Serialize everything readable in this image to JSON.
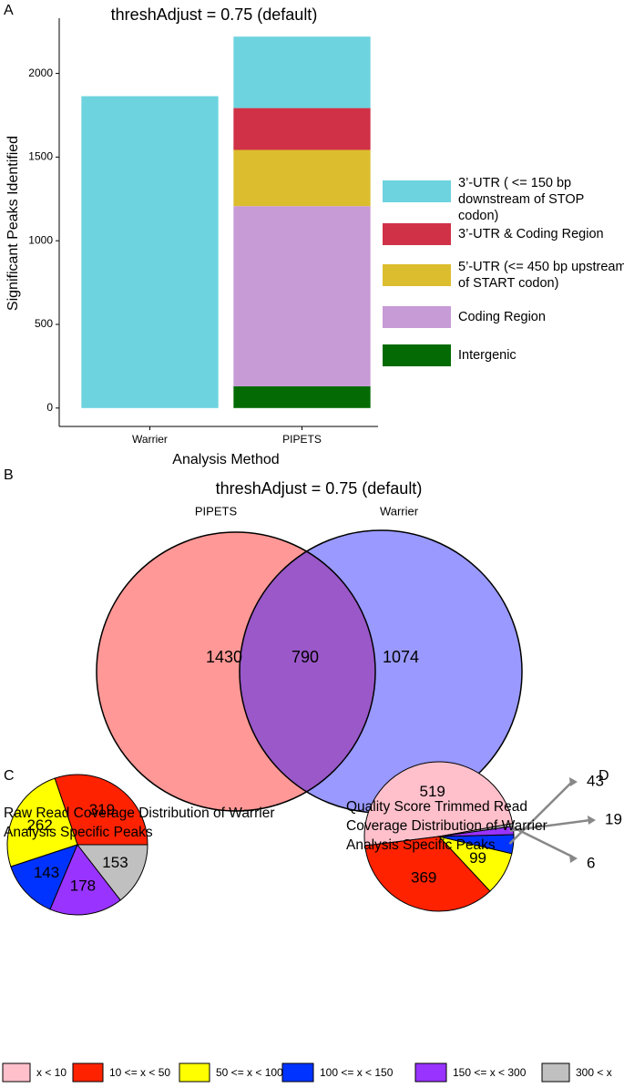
{
  "chart_data": [
    {
      "type": "bar",
      "stacked": true,
      "panel_label": "A",
      "title": "threshAdjust = 0.75 (default)",
      "x_label": "Analysis Method",
      "y_label": "Significant Peaks Identified",
      "categories": [
        "Warrier",
        "PIPETS"
      ],
      "series": [
        {
          "name": "3’-UTR ( <= 150 bp downstream of STOP codon)",
          "color": "#6dd3df",
          "values": [
            1864,
            427
          ]
        },
        {
          "name": "3’-UTR & Coding Region",
          "color": "#d03147",
          "values": [
            0,
            250
          ]
        },
        {
          "name": "5’-UTR (<= 450 bp upstream of START codon)",
          "color": "#dcbd2e",
          "values": [
            0,
            336
          ]
        },
        {
          "name": "Coding Region",
          "color": "#c79bd6",
          "values": [
            0,
            1077
          ]
        },
        {
          "name": "Intergenic",
          "color": "#046b04",
          "values": [
            0,
            130
          ]
        }
      ],
      "ylim": [
        -110,
        2330
      ],
      "yticks": [
        0,
        500,
        1000,
        1500,
        2000
      ]
    },
    {
      "type": "venn",
      "panel_label": "B",
      "title": "threshAdjust = 0.75 (default)",
      "sets": [
        {
          "name": "PIPETS",
          "color": "#ff9896"
        },
        {
          "name": "Warrier",
          "color": "#9999ff"
        }
      ],
      "intersection_color": "#9a58c9",
      "values": [
        1430,
        790,
        1074
      ]
    },
    {
      "type": "pie",
      "panel_label": "C",
      "title": "Raw Read Coverage Distribution of Warrier Analysis Specific Peaks",
      "values": [
        0,
        319,
        262,
        143,
        178,
        153
      ]
    },
    {
      "type": "pie",
      "panel_label": "D",
      "title": "Quality Score Trimmed Read Coverage Distribution of Warrier Analysis Specific Peaks",
      "values": [
        519,
        369,
        99,
        43,
        19,
        6
      ]
    }
  ],
  "legend": {
    "categories": [
      "x < 10",
      "10 <= x < 50",
      "50 <= x < 100",
      "100 <= x < 150",
      "150 <= x < 300",
      "300 < x"
    ],
    "colors": [
      "#ffc0cb",
      "#ff2200",
      "#ffff00",
      "#0033ff",
      "#9933ff",
      "#c0c0c0"
    ]
  }
}
